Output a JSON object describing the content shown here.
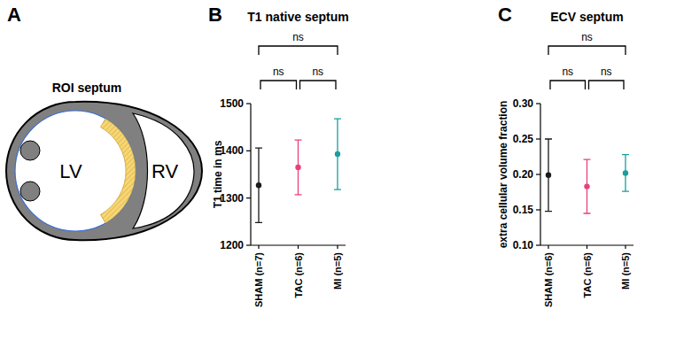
{
  "diagram": {
    "panel_label": "A",
    "title": "ROI septum",
    "left_label": "LV",
    "right_label": "RV"
  },
  "chart_data": [
    {
      "type": "scatter",
      "panel_label": "B",
      "title": "T1 native septum",
      "y_label": "T1 time in ms",
      "categories": [
        "SHAM (n=7)",
        "TAC (n=6)",
        "MI (n=5)"
      ],
      "values": [
        1327,
        1365,
        1393
      ],
      "errors": [
        79,
        58,
        75
      ],
      "colors": [
        "#1a1a1a",
        "#e8417a",
        "#1a9e9e"
      ],
      "ylim": [
        1200,
        1500
      ],
      "yticks": [
        1200,
        1300,
        1400,
        1500
      ],
      "comparisons": [
        {
          "pair": [
            0,
            2
          ],
          "label": "ns"
        },
        {
          "pair": [
            0,
            1
          ],
          "label": "ns"
        },
        {
          "pair": [
            1,
            2
          ],
          "label": "ns"
        }
      ]
    },
    {
      "type": "scatter",
      "panel_label": "C",
      "title": "ECV septum",
      "y_label": "extra cellular volume fraction",
      "categories": [
        "SHAM (n=6)",
        "TAC (n=6)",
        "MI (n=5)"
      ],
      "values": [
        0.199,
        0.183,
        0.202
      ],
      "errors": [
        0.051,
        0.038,
        0.026
      ],
      "colors": [
        "#1a1a1a",
        "#e8417a",
        "#1a9e9e"
      ],
      "ylim": [
        0.1,
        0.3
      ],
      "yticks": [
        {
          "value": 0.1,
          "label": "0.10"
        },
        0.15,
        {
          "value": 0.2,
          "label": "0.20"
        },
        0.25,
        {
          "value": 0.3,
          "label": "0.30"
        }
      ],
      "comparisons": [
        {
          "pair": [
            0,
            2
          ],
          "label": "ns"
        },
        {
          "pair": [
            0,
            1
          ],
          "label": "ns"
        },
        {
          "pair": [
            1,
            2
          ],
          "label": "ns"
        }
      ]
    }
  ]
}
